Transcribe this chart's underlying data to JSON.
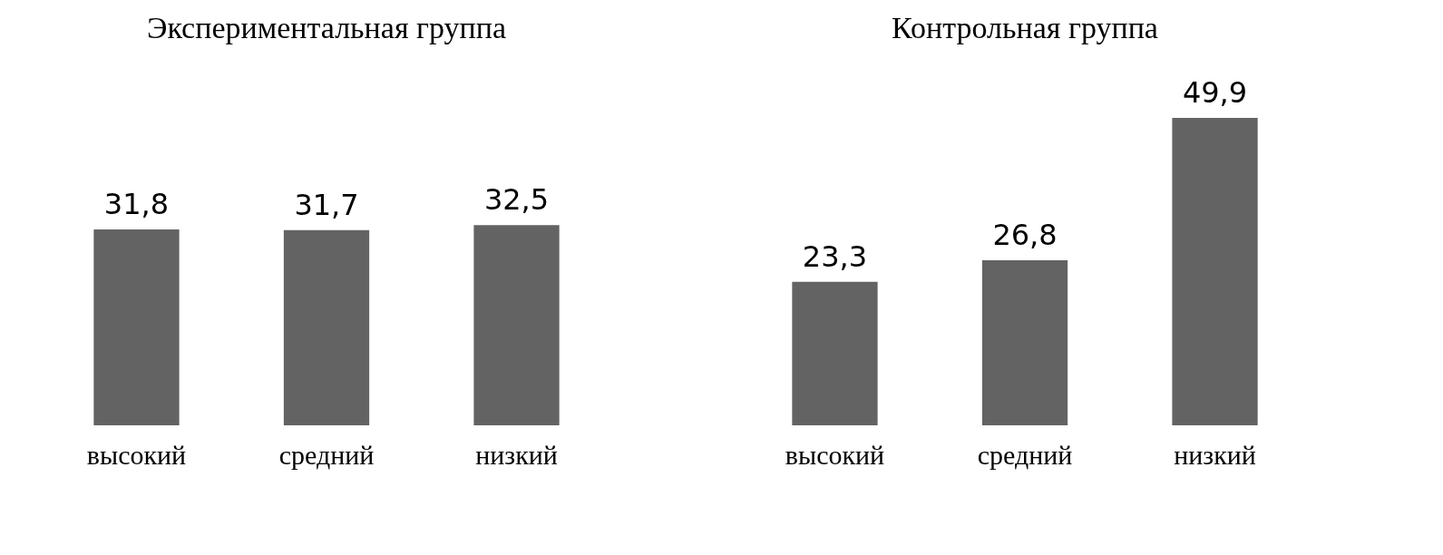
{
  "chart_data": [
    {
      "type": "bar",
      "title": "Экспериментальная группа",
      "categories": [
        "высокий",
        "средний",
        "низкий"
      ],
      "values": [
        31.8,
        31.7,
        32.5
      ],
      "color": "#636363",
      "value_labels": [
        "31,8",
        "31,7",
        "32,5"
      ]
    },
    {
      "type": "bar",
      "title": "Контрольная группа",
      "categories": [
        "высокий",
        "средний",
        "низкий"
      ],
      "values": [
        23.3,
        26.8,
        49.9
      ],
      "color": "#636363",
      "value_labels": [
        "23,3",
        "26,8",
        "49,9"
      ]
    }
  ]
}
